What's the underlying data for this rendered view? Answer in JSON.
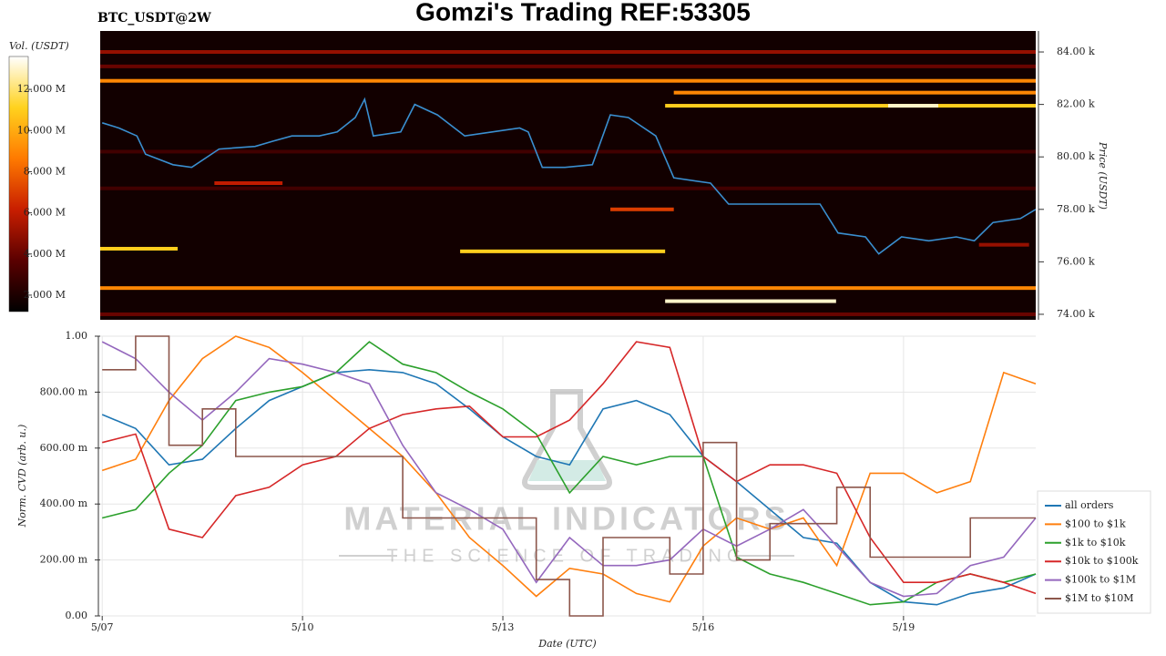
{
  "chart_data": [
    {
      "type": "heatmap",
      "title": "Gomzi's Trading REF:53305",
      "subtitle": "BTC_USDT@2W",
      "ylabel": "Price (USDT)",
      "colorbar_label": "Vol. (USDT)",
      "xlim": [
        -0.03,
        13.98
      ],
      "ylim": [
        73790,
        84800
      ],
      "yticks": [
        {
          "value": 74000,
          "label": "74.00 k"
        },
        {
          "value": 76000,
          "label": "76.00 k"
        },
        {
          "value": 78000,
          "label": "78.00 k"
        },
        {
          "value": 80000,
          "label": "80.00 k"
        },
        {
          "value": 82000,
          "label": "82.00 k"
        },
        {
          "value": 84000,
          "label": "84.00 k"
        }
      ],
      "clim": [
        1200000,
        13600000
      ],
      "cticks": [
        {
          "value": 2000000,
          "label": "2.000 M"
        },
        {
          "value": 4000000,
          "label": "4.000 M"
        },
        {
          "value": 6000000,
          "label": "6.000 M"
        },
        {
          "value": 8000000,
          "label": "8.000 M"
        },
        {
          "value": 10000000,
          "label": "10.000 M"
        },
        {
          "value": 12000000,
          "label": "12.000 M"
        }
      ],
      "colormap": [
        "#000000",
        "#5a0000",
        "#c81e00",
        "#ff7a00",
        "#ffd21e",
        "#ffffff"
      ],
      "background": "#120000",
      "levels": {
        "prices": [
          84000,
          82900,
          82450,
          81950,
          81950,
          76500,
          76400,
          75000,
          74500,
          79000,
          78000,
          76650,
          83450,
          74000,
          80200,
          78800
        ],
        "x_start": [
          -0.03,
          -0.03,
          8.56,
          8.43,
          11.77,
          -0.03,
          5.36,
          -0.03,
          8.43,
          1.68,
          7.61,
          13.13,
          -0.03,
          -0.03,
          -0.03,
          -0.03
        ],
        "x_end": [
          13.98,
          13.98,
          13.98,
          13.98,
          12.52,
          1.13,
          8.43,
          13.98,
          10.99,
          2.7,
          8.56,
          13.88,
          13.98,
          13.98,
          13.98,
          13.98
        ],
        "volumes": [
          5000000,
          9000000,
          9000000,
          11000000,
          13000000,
          11000000,
          11000000,
          9000000,
          13000000,
          6000000,
          7000000,
          5000000,
          4000000,
          4000000,
          3000000,
          3000000
        ]
      },
      "series": [
        {
          "color": "#3a8fd0",
          "x": [
            0,
            0.25,
            0.52,
            0.65,
            1.06,
            1.34,
            1.75,
            2.29,
            2.56,
            2.84,
            3.25,
            3.52,
            3.79,
            3.93,
            4.06,
            4.47,
            4.68,
            5.02,
            5.43,
            5.84,
            6.25,
            6.38,
            6.59,
            6.93,
            7.34,
            7.61,
            7.88,
            8.29,
            8.56,
            9.11,
            9.38,
            9.79,
            10.2,
            10.75,
            11.02,
            11.43,
            11.63,
            11.97,
            12.38,
            12.79,
            13.06,
            13.34,
            13.75,
            13.98
          ],
          "values": [
            81300,
            81100,
            80800,
            80100,
            79700,
            79600,
            80300,
            80400,
            80600,
            80800,
            80800,
            80950,
            81500,
            82200,
            80800,
            80950,
            82000,
            81600,
            80800,
            80950,
            81100,
            80950,
            79600,
            79600,
            79700,
            81600,
            81500,
            80800,
            79200,
            79000,
            78200,
            78200,
            78200,
            78200,
            77100,
            76950,
            76300,
            76950,
            76800,
            76950,
            76800,
            77500,
            77650,
            78000
          ]
        }
      ]
    },
    {
      "type": "line",
      "xlabel": "Date (UTC)",
      "ylabel": "Norm. CVD (arb. u.)",
      "annotations": [
        "MATERIAL INDICATORS",
        "THE SCIENCE OF TRADING"
      ],
      "xlim": [
        -0.03,
        13.98
      ],
      "ylim": [
        0,
        1
      ],
      "grid": true,
      "legend": "right",
      "xticks": [
        {
          "value": 0,
          "label": "5/07"
        },
        {
          "value": 3,
          "label": "5/10"
        },
        {
          "value": 6,
          "label": "5/13"
        },
        {
          "value": 9,
          "label": "5/16"
        },
        {
          "value": 12,
          "label": "5/19"
        }
      ],
      "yticks": [
        {
          "value": 0,
          "label": "0.00"
        },
        {
          "value": 0.2,
          "label": "200.00 m"
        },
        {
          "value": 0.4,
          "label": "400.00 m"
        },
        {
          "value": 0.6,
          "label": "600.00 m"
        },
        {
          "value": 0.8,
          "label": "800.00 m"
        },
        {
          "value": 1,
          "label": "1.00"
        }
      ],
      "x": [
        0,
        0.5,
        1,
        1.5,
        2,
        2.5,
        3,
        3.5,
        4,
        4.5,
        5,
        5.5,
        6,
        6.5,
        7,
        7.5,
        8,
        8.5,
        9,
        9.5,
        10,
        10.5,
        11,
        11.5,
        12,
        12.5,
        13,
        13.5,
        13.98
      ],
      "series": [
        {
          "name": "all orders",
          "color": "#1f77b4",
          "values": [
            0.72,
            0.67,
            0.54,
            0.56,
            0.67,
            0.77,
            0.82,
            0.87,
            0.88,
            0.87,
            0.83,
            0.74,
            0.64,
            0.57,
            0.54,
            0.74,
            0.77,
            0.72,
            0.57,
            0.48,
            0.38,
            0.28,
            0.26,
            0.12,
            0.05,
            0.04,
            0.08,
            0.1,
            0.15
          ]
        },
        {
          "name": "$100 to $1k",
          "color": "#ff7f0e",
          "values": [
            0.52,
            0.56,
            0.77,
            0.92,
            1.0,
            0.96,
            0.87,
            0.77,
            0.67,
            0.57,
            0.44,
            0.28,
            0.18,
            0.07,
            0.17,
            0.15,
            0.08,
            0.05,
            0.25,
            0.35,
            0.31,
            0.35,
            0.18,
            0.51,
            0.51,
            0.44,
            0.48,
            0.87,
            0.83
          ]
        },
        {
          "name": "$1k to $10k",
          "color": "#2ca02c",
          "values": [
            0.35,
            0.38,
            0.51,
            0.61,
            0.77,
            0.8,
            0.82,
            0.87,
            0.98,
            0.9,
            0.87,
            0.8,
            0.74,
            0.65,
            0.44,
            0.57,
            0.54,
            0.57,
            0.57,
            0.21,
            0.15,
            0.12,
            0.08,
            0.04,
            0.05,
            0.12,
            0.15,
            0.12,
            0.15
          ]
        },
        {
          "name": "$10k to $100k",
          "color": "#d62728",
          "values": [
            0.62,
            0.65,
            0.31,
            0.28,
            0.43,
            0.46,
            0.54,
            0.57,
            0.67,
            0.72,
            0.74,
            0.75,
            0.64,
            0.64,
            0.7,
            0.83,
            0.98,
            0.96,
            0.57,
            0.48,
            0.54,
            0.54,
            0.51,
            0.28,
            0.12,
            0.12,
            0.15,
            0.12,
            0.08
          ]
        },
        {
          "name": "$100k to $1M",
          "color": "#9467bd",
          "values": [
            0.98,
            0.92,
            0.8,
            0.7,
            0.8,
            0.92,
            0.9,
            0.87,
            0.83,
            0.61,
            0.44,
            0.38,
            0.31,
            0.12,
            0.28,
            0.18,
            0.18,
            0.2,
            0.31,
            0.25,
            0.31,
            0.38,
            0.25,
            0.12,
            0.07,
            0.08,
            0.18,
            0.21,
            0.35
          ]
        },
        {
          "name": "$1M to $10M",
          "color": "#8c564b",
          "step": "post",
          "values": [
            0.88,
            1.0,
            0.61,
            0.74,
            0.57,
            0.57,
            0.57,
            0.57,
            0.57,
            0.35,
            0.35,
            0.35,
            0.35,
            0.13,
            0.0,
            0.28,
            0.28,
            0.15,
            0.62,
            0.2,
            0.33,
            0.33,
            0.46,
            0.21,
            0.21,
            0.21,
            0.35,
            0.35,
            0.35
          ]
        }
      ]
    }
  ]
}
